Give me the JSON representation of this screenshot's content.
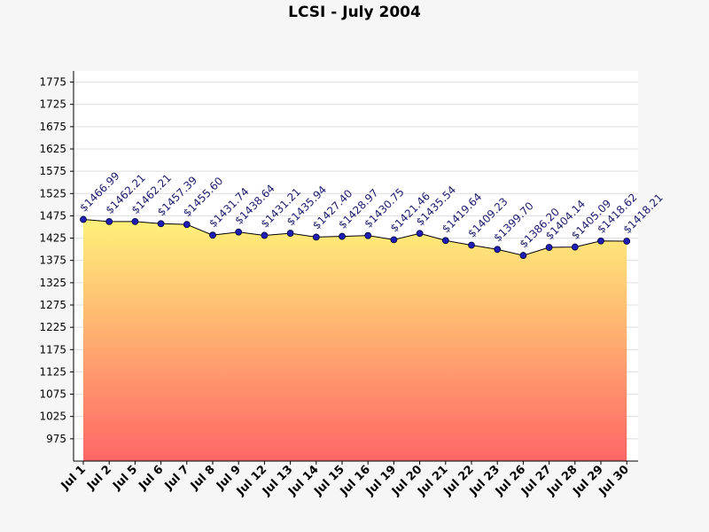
{
  "chart_data": {
    "type": "area",
    "title": "LCSI - July 2004",
    "xlabel": "",
    "ylabel": "",
    "ylim": [
      925,
      1800
    ],
    "yticks": [
      975,
      1025,
      1075,
      1125,
      1175,
      1225,
      1275,
      1325,
      1375,
      1425,
      1475,
      1525,
      1575,
      1625,
      1675,
      1725,
      1775
    ],
    "grid": true,
    "legend": "none",
    "categories": [
      "Jul 1",
      "Jul 2",
      "Jul 5",
      "Jul 6",
      "Jul 7",
      "Jul 8",
      "Jul 9",
      "Jul 12",
      "Jul 13",
      "Jul 14",
      "Jul 15",
      "Jul 16",
      "Jul 19",
      "Jul 20",
      "Jul 21",
      "Jul 22",
      "Jul 23",
      "Jul 26",
      "Jul 27",
      "Jul 28",
      "Jul 29",
      "Jul 30"
    ],
    "values": [
      1466.99,
      1462.21,
      1462.21,
      1457.39,
      1455.6,
      1431.74,
      1438.64,
      1431.21,
      1435.94,
      1427.4,
      1428.97,
      1430.75,
      1421.46,
      1435.54,
      1419.64,
      1409.23,
      1399.7,
      1386.2,
      1404.14,
      1405.09,
      1418.62,
      1418.21
    ],
    "data_labels": [
      "$1466.99",
      "$1462.21",
      "$1462.21",
      "$1457.39",
      "$1455.60",
      "$1431.74",
      "$1438.64",
      "$1431.21",
      "$1435.94",
      "$1427.40",
      "$1428.97",
      "$1430.75",
      "$1421.46",
      "$1435.54",
      "$1419.64",
      "$1409.23",
      "$1399.70",
      "$1386.20",
      "$1404.14",
      "$1405.09",
      "$1418.62",
      "$1418.21"
    ],
    "colors": {
      "fill_top": "#fff27a",
      "fill_bottom": "#ff6666",
      "line": "#000000",
      "marker": "#1e1eb4",
      "grid": "#dddddd",
      "label": "#1c1c6e"
    }
  }
}
